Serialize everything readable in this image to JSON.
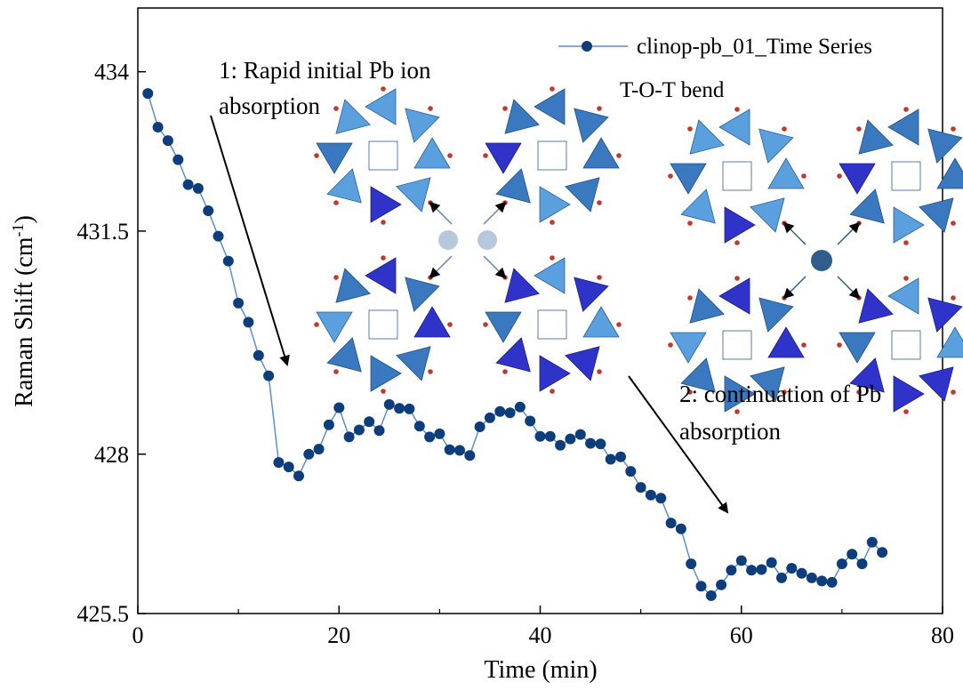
{
  "chart_data": {
    "type": "line",
    "xlabel": "Time (min)",
    "ylabel": "Raman Shift (cm",
    "ylabel_sup": "-1",
    "ylabel_tail": ")",
    "xlim": [
      0,
      80
    ],
    "ylim": [
      425.5,
      435
    ],
    "x_ticks": [
      "0",
      "20",
      "40",
      "60",
      "80"
    ],
    "x_tick_values": [
      0,
      20,
      40,
      60,
      80
    ],
    "y_ticks": [
      "425.5",
      "428",
      "431.5",
      "434"
    ],
    "y_tick_values": [
      425.5,
      428,
      431.5,
      434
    ],
    "grid": false,
    "legend_position": "top-right",
    "series": [
      {
        "name": "clinop-pb_01_Time Series",
        "color": "#0d3d7a",
        "line_color": "#5b8fc7",
        "x": [
          1,
          2,
          3,
          4,
          5,
          6,
          7,
          8,
          9,
          10,
          11,
          12,
          13,
          14,
          15,
          16,
          17,
          18,
          19,
          20,
          21,
          22,
          23,
          24,
          25,
          26,
          27,
          28,
          29,
          30,
          31,
          32,
          33,
          34,
          35,
          36,
          37,
          38,
          39,
          40,
          41,
          42,
          43,
          44,
          45,
          46,
          47,
          48,
          49,
          50,
          51,
          52,
          53,
          54,
          55,
          56,
          57,
          58,
          59,
          60,
          61,
          62,
          63,
          64,
          65,
          66,
          67,
          68,
          69,
          70,
          71,
          72,
          73,
          74
        ],
        "y": [
          433.66,
          433.13,
          432.92,
          432.62,
          432.23,
          432.17,
          431.82,
          431.42,
          431.03,
          430.37,
          430.07,
          429.55,
          429.23,
          427.87,
          427.8,
          427.66,
          428.0,
          428.08,
          428.46,
          428.73,
          428.27,
          428.38,
          428.51,
          428.37,
          428.78,
          428.72,
          428.71,
          428.44,
          428.27,
          428.32,
          428.07,
          428.06,
          427.98,
          428.43,
          428.57,
          428.67,
          428.65,
          428.74,
          428.52,
          428.28,
          428.28,
          428.14,
          428.24,
          428.31,
          428.17,
          428.16,
          427.92,
          427.96,
          427.73,
          427.48,
          427.36,
          427.31,
          426.92,
          426.83,
          426.28,
          425.93,
          425.78,
          425.95,
          426.18,
          426.33,
          426.18,
          426.19,
          426.3,
          426.06,
          426.21,
          426.13,
          426.06,
          426.01,
          425.99,
          426.28,
          426.43,
          426.28,
          426.62,
          426.46
        ]
      }
    ],
    "subtitle": "T-O-T bend",
    "annotations": [
      {
        "lines": [
          "1: Rapid initial Pb ion",
          "absorption"
        ]
      },
      {
        "lines": [
          "2: continuation of Pb",
          "absorption"
        ]
      }
    ]
  }
}
